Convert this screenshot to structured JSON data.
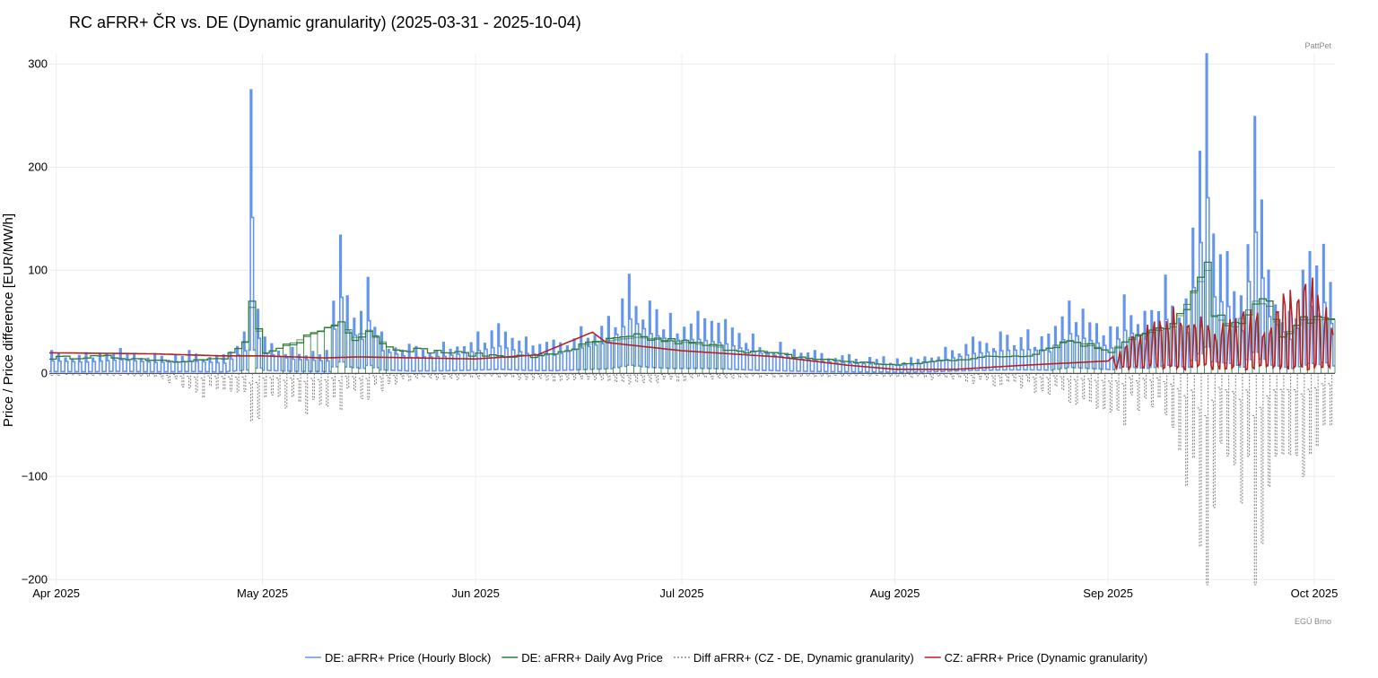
{
  "chart_data": {
    "type": "line",
    "title": "RC aFRR+ ČR vs. DE (Dynamic granularity) (2025-03-31 - 2025-10-04)",
    "xlabel": "",
    "ylabel": "Price / Price difference [EUR/MW/h]",
    "watermark_top": "PattPet",
    "watermark_bottom": "EGÚ Brno",
    "x_range": [
      "2025-03-31",
      "2025-10-04"
    ],
    "ylim": [
      -205,
      310
    ],
    "grid": true,
    "legend_position": "bottom",
    "x_ticks": [
      {
        "date": "2025-04-01",
        "label": "Apr 2025"
      },
      {
        "date": "2025-05-01",
        "label": "May 2025"
      },
      {
        "date": "2025-06-01",
        "label": "Jun 2025"
      },
      {
        "date": "2025-07-01",
        "label": "Jul 2025"
      },
      {
        "date": "2025-08-01",
        "label": "Aug 2025"
      },
      {
        "date": "2025-09-01",
        "label": "Sep 2025"
      },
      {
        "date": "2025-10-01",
        "label": "Oct 2025"
      }
    ],
    "y_ticks": [
      {
        "value": 300,
        "label": "300"
      },
      {
        "value": 200,
        "label": "200"
      },
      {
        "value": 100,
        "label": "100"
      },
      {
        "value": 0,
        "label": "0"
      },
      {
        "value": -100,
        "label": "−100"
      },
      {
        "value": -200,
        "label": "−200"
      }
    ],
    "series": [
      {
        "name": "DE: aFRR+ Price (Hourly Block)",
        "color": "#6495ED",
        "style": "solid",
        "daily_peaks": [
          {
            "date": "2025-03-31",
            "value": 22
          },
          {
            "date": "2025-04-05",
            "value": 20
          },
          {
            "date": "2025-04-10",
            "value": 24
          },
          {
            "date": "2025-04-15",
            "value": 19
          },
          {
            "date": "2025-04-20",
            "value": 22
          },
          {
            "date": "2025-04-25",
            "value": 18
          },
          {
            "date": "2025-04-28",
            "value": 40
          },
          {
            "date": "2025-04-29",
            "value": 275
          },
          {
            "date": "2025-04-30",
            "value": 62
          },
          {
            "date": "2025-05-01",
            "value": 35
          },
          {
            "date": "2025-05-05",
            "value": 25
          },
          {
            "date": "2025-05-10",
            "value": 22
          },
          {
            "date": "2025-05-12",
            "value": 134
          },
          {
            "date": "2025-05-13",
            "value": 75
          },
          {
            "date": "2025-05-15",
            "value": 60
          },
          {
            "date": "2025-05-16",
            "value": 93
          },
          {
            "date": "2025-05-18",
            "value": 40
          },
          {
            "date": "2025-05-22",
            "value": 28
          },
          {
            "date": "2025-05-27",
            "value": 30
          },
          {
            "date": "2025-06-01",
            "value": 40
          },
          {
            "date": "2025-06-04",
            "value": 48
          },
          {
            "date": "2025-06-08",
            "value": 35
          },
          {
            "date": "2025-06-12",
            "value": 32
          },
          {
            "date": "2025-06-16",
            "value": 45
          },
          {
            "date": "2025-06-20",
            "value": 55
          },
          {
            "date": "2025-06-23",
            "value": 96
          },
          {
            "date": "2025-06-26",
            "value": 70
          },
          {
            "date": "2025-06-29",
            "value": 58
          },
          {
            "date": "2025-07-03",
            "value": 60
          },
          {
            "date": "2025-07-07",
            "value": 52
          },
          {
            "date": "2025-07-11",
            "value": 38
          },
          {
            "date": "2025-07-15",
            "value": 30
          },
          {
            "date": "2025-07-20",
            "value": 22
          },
          {
            "date": "2025-07-25",
            "value": 18
          },
          {
            "date": "2025-07-30",
            "value": 16
          },
          {
            "date": "2025-08-03",
            "value": 15
          },
          {
            "date": "2025-08-08",
            "value": 25
          },
          {
            "date": "2025-08-12",
            "value": 35
          },
          {
            "date": "2025-08-16",
            "value": 40
          },
          {
            "date": "2025-08-20",
            "value": 42
          },
          {
            "date": "2025-08-23",
            "value": 38
          },
          {
            "date": "2025-08-26",
            "value": 70
          },
          {
            "date": "2025-08-28",
            "value": 62
          },
          {
            "date": "2025-09-01",
            "value": 45
          },
          {
            "date": "2025-09-03",
            "value": 76
          },
          {
            "date": "2025-09-06",
            "value": 60
          },
          {
            "date": "2025-09-09",
            "value": 95
          },
          {
            "date": "2025-09-12",
            "value": 72
          },
          {
            "date": "2025-09-15",
            "value": 310
          },
          {
            "date": "2025-09-16",
            "value": 135
          },
          {
            "date": "2025-09-18",
            "value": 118
          },
          {
            "date": "2025-09-20",
            "value": 75
          },
          {
            "date": "2025-09-22",
            "value": 249
          },
          {
            "date": "2025-09-23",
            "value": 168
          },
          {
            "date": "2025-09-24",
            "value": 100
          },
          {
            "date": "2025-09-27",
            "value": 60
          },
          {
            "date": "2025-09-29",
            "value": 100
          },
          {
            "date": "2025-09-30",
            "value": 118
          },
          {
            "date": "2025-10-01",
            "value": 104
          },
          {
            "date": "2025-10-02",
            "value": 125
          },
          {
            "date": "2025-10-03",
            "value": 88
          }
        ]
      },
      {
        "name": "DE: aFRR+ Daily Avg Price",
        "color": "#2E7D32",
        "style": "step",
        "points": [
          {
            "date": "2025-03-31",
            "value": 15
          },
          {
            "date": "2025-04-08",
            "value": 16
          },
          {
            "date": "2025-04-18",
            "value": 12
          },
          {
            "date": "2025-04-25",
            "value": 14
          },
          {
            "date": "2025-04-28",
            "value": 30
          },
          {
            "date": "2025-04-29",
            "value": 64
          },
          {
            "date": "2025-05-01",
            "value": 18
          },
          {
            "date": "2025-05-12",
            "value": 50
          },
          {
            "date": "2025-05-14",
            "value": 35
          },
          {
            "date": "2025-05-16",
            "value": 42
          },
          {
            "date": "2025-05-19",
            "value": 25
          },
          {
            "date": "2025-06-01",
            "value": 18
          },
          {
            "date": "2025-06-10",
            "value": 16
          },
          {
            "date": "2025-06-18",
            "value": 30
          },
          {
            "date": "2025-06-24",
            "value": 35
          },
          {
            "date": "2025-07-01",
            "value": 30
          },
          {
            "date": "2025-07-10",
            "value": 22
          },
          {
            "date": "2025-07-20",
            "value": 14
          },
          {
            "date": "2025-08-01",
            "value": 8
          },
          {
            "date": "2025-08-10",
            "value": 14
          },
          {
            "date": "2025-08-20",
            "value": 18
          },
          {
            "date": "2025-08-26",
            "value": 32
          },
          {
            "date": "2025-09-01",
            "value": 22
          },
          {
            "date": "2025-09-04",
            "value": 35
          },
          {
            "date": "2025-09-10",
            "value": 45
          },
          {
            "date": "2025-09-15",
            "value": 100
          },
          {
            "date": "2025-09-16",
            "value": 55
          },
          {
            "date": "2025-09-19",
            "value": 45
          },
          {
            "date": "2025-09-22",
            "value": 70
          },
          {
            "date": "2025-09-24",
            "value": 65
          },
          {
            "date": "2025-09-26",
            "value": 35
          },
          {
            "date": "2025-09-29",
            "value": 52
          },
          {
            "date": "2025-10-04",
            "value": 52
          }
        ]
      },
      {
        "name": "Diff aFRR+ (CZ - DE, Dynamic granularity)",
        "color": "#888888",
        "style": "dotted",
        "daily_troughs": [
          {
            "date": "2025-03-31",
            "value": -2
          },
          {
            "date": "2025-04-15",
            "value": -3
          },
          {
            "date": "2025-04-29",
            "value": -46
          },
          {
            "date": "2025-05-12",
            "value": -35
          },
          {
            "date": "2025-05-16",
            "value": -25
          },
          {
            "date": "2025-05-20",
            "value": -10
          },
          {
            "date": "2025-06-01",
            "value": -5
          },
          {
            "date": "2025-06-23",
            "value": -10
          },
          {
            "date": "2025-07-10",
            "value": -4
          },
          {
            "date": "2025-08-01",
            "value": -3
          },
          {
            "date": "2025-08-15",
            "value": -12
          },
          {
            "date": "2025-08-26",
            "value": -28
          },
          {
            "date": "2025-09-03",
            "value": -50
          },
          {
            "date": "2025-09-09",
            "value": -40
          },
          {
            "date": "2025-09-15",
            "value": -205
          },
          {
            "date": "2025-09-16",
            "value": -130
          },
          {
            "date": "2025-09-18",
            "value": -80
          },
          {
            "date": "2025-09-22",
            "value": -205
          },
          {
            "date": "2025-09-23",
            "value": -165
          },
          {
            "date": "2025-09-25",
            "value": -80
          },
          {
            "date": "2025-09-29",
            "value": -100
          },
          {
            "date": "2025-10-01",
            "value": -70
          },
          {
            "date": "2025-10-03",
            "value": -50
          }
        ]
      },
      {
        "name": "CZ: aFRR+ Price (Dynamic granularity)",
        "color": "#B22222",
        "style": "solid",
        "points": [
          {
            "date": "2025-03-31",
            "value": 20
          },
          {
            "date": "2025-04-15",
            "value": 19
          },
          {
            "date": "2025-04-25",
            "value": 17
          },
          {
            "date": "2025-05-01",
            "value": 17
          },
          {
            "date": "2025-05-10",
            "value": 15
          },
          {
            "date": "2025-05-15",
            "value": 16
          },
          {
            "date": "2025-06-01",
            "value": 14
          },
          {
            "date": "2025-06-10",
            "value": 18
          },
          {
            "date": "2025-06-18",
            "value": 40
          },
          {
            "date": "2025-06-20",
            "value": 30
          },
          {
            "date": "2025-07-01",
            "value": 22
          },
          {
            "date": "2025-07-15",
            "value": 16
          },
          {
            "date": "2025-07-25",
            "value": 8
          },
          {
            "date": "2025-08-01",
            "value": 4
          },
          {
            "date": "2025-08-10",
            "value": 4
          },
          {
            "date": "2025-08-20",
            "value": 8
          },
          {
            "date": "2025-08-26",
            "value": 10
          },
          {
            "date": "2025-09-01",
            "value": 12
          },
          {
            "date": "2025-09-10",
            "value": 65
          },
          {
            "date": "2025-09-15",
            "value": 50
          },
          {
            "date": "2025-09-20",
            "value": 55
          },
          {
            "date": "2025-09-25",
            "value": 60
          },
          {
            "date": "2025-09-30",
            "value": 95
          },
          {
            "date": "2025-10-02",
            "value": 85
          },
          {
            "date": "2025-10-04",
            "value": 55
          }
        ]
      }
    ]
  },
  "legend": [
    {
      "label": "DE: aFRR+ Price (Hourly Block)",
      "color": "#6495ED",
      "dash": "none"
    },
    {
      "label": "DE: aFRR+ Daily Avg Price",
      "color": "#2E7D32",
      "dash": "none"
    },
    {
      "label": "Diff aFRR+ (CZ - DE, Dynamic granularity)",
      "color": "#888888",
      "dash": "2,2"
    },
    {
      "label": "CZ: aFRR+ Price (Dynamic granularity)",
      "color": "#B22222",
      "dash": "none"
    }
  ]
}
